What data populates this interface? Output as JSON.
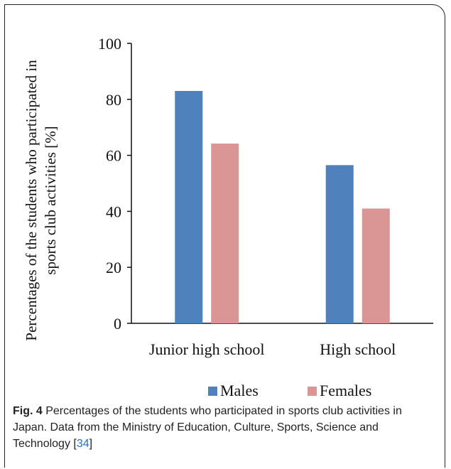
{
  "chart_data": {
    "type": "bar",
    "categories": [
      "Junior high school",
      "High school"
    ],
    "series": [
      {
        "name": "Males",
        "values": [
          83,
          56.5
        ],
        "color": "#4f81bd"
      },
      {
        "name": "Females",
        "values": [
          64.2,
          41
        ],
        "color": "#d99694"
      }
    ],
    "ylabel_line1": "Percentages of the students who participated in",
    "ylabel_line2": "sports club activities [%]",
    "ylim": [
      0,
      100
    ],
    "yticks": [
      0,
      20,
      40,
      60,
      80,
      100
    ],
    "legend_position": "bottom",
    "grid": false
  },
  "caption": {
    "fig_label": "Fig. 4",
    "text": " Percentages of the students who participated in sports club activities in Japan. Data from the Ministry of Education, Culture, Sports, Science and Technology [",
    "ref": "34",
    "close": "]"
  }
}
